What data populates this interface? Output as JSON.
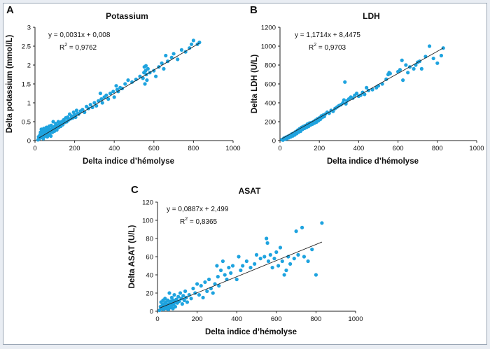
{
  "chart_data": [
    {
      "type": "scatter",
      "panel_label": "A",
      "title": "Potassium",
      "xlabel": "Delta indice d’hémolyse",
      "ylabel": "Delta potassium (mmol/L)",
      "xlim": [
        0,
        1000
      ],
      "ylim": [
        0,
        3
      ],
      "xticks": [
        "0",
        "200",
        "400",
        "600",
        "800",
        "1000"
      ],
      "yticks": [
        "0",
        "0.5",
        "1",
        "1.5",
        "2",
        "2.5",
        "3"
      ],
      "equation": "y = 0,0031x + 0,008",
      "r2_label": "R",
      "r2_exp": "2",
      "r2_value": " = 0,9762",
      "trendline": {
        "slope": 0.0031,
        "intercept": 0.008,
        "x_range": [
          20,
          830
        ]
      },
      "points": [
        [
          15,
          0.02
        ],
        [
          18,
          0.1
        ],
        [
          22,
          0.05
        ],
        [
          25,
          0.15
        ],
        [
          28,
          0.22
        ],
        [
          30,
          0.08
        ],
        [
          32,
          0.3
        ],
        [
          35,
          0.12
        ],
        [
          38,
          0.18
        ],
        [
          40,
          0.25
        ],
        [
          42,
          0.05
        ],
        [
          45,
          0.32
        ],
        [
          48,
          0.2
        ],
        [
          50,
          0.12
        ],
        [
          52,
          0.28
        ],
        [
          55,
          0.18
        ],
        [
          58,
          0.35
        ],
        [
          60,
          0.22
        ],
        [
          62,
          0.1
        ],
        [
          65,
          0.3
        ],
        [
          68,
          0.15
        ],
        [
          70,
          0.25
        ],
        [
          72,
          0.38
        ],
        [
          75,
          0.2
        ],
        [
          78,
          0.3
        ],
        [
          80,
          0.12
        ],
        [
          82,
          0.4
        ],
        [
          85,
          0.28
        ],
        [
          88,
          0.22
        ],
        [
          90,
          0.35
        ],
        [
          92,
          0.5
        ],
        [
          95,
          0.3
        ],
        [
          98,
          0.25
        ],
        [
          100,
          0.38
        ],
        [
          105,
          0.45
        ],
        [
          108,
          0.32
        ],
        [
          110,
          0.28
        ],
        [
          115,
          0.4
        ],
        [
          118,
          0.5
        ],
        [
          120,
          0.35
        ],
        [
          125,
          0.45
        ],
        [
          130,
          0.38
        ],
        [
          135,
          0.5
        ],
        [
          140,
          0.42
        ],
        [
          145,
          0.55
        ],
        [
          150,
          0.48
        ],
        [
          155,
          0.6
        ],
        [
          160,
          0.5
        ],
        [
          165,
          0.62
        ],
        [
          170,
          0.55
        ],
        [
          175,
          0.7
        ],
        [
          180,
          0.58
        ],
        [
          185,
          0.65
        ],
        [
          190,
          0.6
        ],
        [
          195,
          0.75
        ],
        [
          200,
          0.68
        ],
        [
          205,
          0.62
        ],
        [
          210,
          0.8
        ],
        [
          215,
          0.72
        ],
        [
          220,
          0.7
        ],
        [
          230,
          0.78
        ],
        [
          240,
          0.82
        ],
        [
          250,
          0.75
        ],
        [
          260,
          0.9
        ],
        [
          270,
          0.85
        ],
        [
          280,
          0.95
        ],
        [
          290,
          0.88
        ],
        [
          300,
          1.0
        ],
        [
          310,
          0.92
        ],
        [
          320,
          1.05
        ],
        [
          330,
          1.25
        ],
        [
          335,
          1.1
        ],
        [
          340,
          1.0
        ],
        [
          350,
          1.15
        ],
        [
          360,
          1.2
        ],
        [
          370,
          1.1
        ],
        [
          380,
          1.25
        ],
        [
          395,
          1.3
        ],
        [
          400,
          1.15
        ],
        [
          410,
          1.45
        ],
        [
          415,
          1.35
        ],
        [
          420,
          1.3
        ],
        [
          430,
          1.4
        ],
        [
          440,
          1.38
        ],
        [
          455,
          1.5
        ],
        [
          470,
          1.6
        ],
        [
          490,
          1.55
        ],
        [
          510,
          1.62
        ],
        [
          530,
          1.7
        ],
        [
          545,
          1.65
        ],
        [
          550,
          1.8
        ],
        [
          552,
          1.95
        ],
        [
          555,
          1.5
        ],
        [
          558,
          1.85
        ],
        [
          560,
          1.98
        ],
        [
          562,
          1.75
        ],
        [
          565,
          1.6
        ],
        [
          570,
          1.9
        ],
        [
          580,
          1.8
        ],
        [
          600,
          1.85
        ],
        [
          610,
          1.7
        ],
        [
          625,
          1.95
        ],
        [
          640,
          2.05
        ],
        [
          650,
          1.9
        ],
        [
          660,
          2.25
        ],
        [
          670,
          2.1
        ],
        [
          690,
          2.2
        ],
        [
          700,
          2.3
        ],
        [
          720,
          2.15
        ],
        [
          740,
          2.4
        ],
        [
          760,
          2.35
        ],
        [
          780,
          2.45
        ],
        [
          790,
          2.55
        ],
        [
          800,
          2.65
        ],
        [
          820,
          2.55
        ],
        [
          830,
          2.6
        ]
      ]
    },
    {
      "type": "scatter",
      "panel_label": "B",
      "title": "LDH",
      "xlabel": "Delta indice d’hémolyse",
      "ylabel": "Delta LDH (U/L)",
      "xlim": [
        0,
        1000
      ],
      "ylim": [
        0,
        1200
      ],
      "xticks": [
        "0",
        "200",
        "400",
        "600",
        "800",
        "1000"
      ],
      "yticks": [
        "0",
        "200",
        "400",
        "600",
        "800",
        "1000",
        "1200"
      ],
      "equation": "y = 1,1714x + 8,4475",
      "r2_label": "R",
      "r2_exp": "2",
      "r2_value": " = 0,9703",
      "trendline": {
        "slope": 1.1714,
        "intercept": 8.4475,
        "x_range": [
          10,
          830
        ]
      },
      "points": [
        [
          10,
          10
        ],
        [
          15,
          5
        ],
        [
          20,
          25
        ],
        [
          25,
          15
        ],
        [
          30,
          35
        ],
        [
          35,
          20
        ],
        [
          40,
          45
        ],
        [
          45,
          30
        ],
        [
          50,
          55
        ],
        [
          55,
          40
        ],
        [
          60,
          70
        ],
        [
          65,
          50
        ],
        [
          70,
          80
        ],
        [
          75,
          60
        ],
        [
          80,
          95
        ],
        [
          85,
          75
        ],
        [
          90,
          110
        ],
        [
          95,
          90
        ],
        [
          100,
          125
        ],
        [
          105,
          100
        ],
        [
          110,
          140
        ],
        [
          115,
          120
        ],
        [
          120,
          150
        ],
        [
          125,
          130
        ],
        [
          130,
          160
        ],
        [
          135,
          140
        ],
        [
          140,
          175
        ],
        [
          145,
          150
        ],
        [
          150,
          185
        ],
        [
          155,
          165
        ],
        [
          160,
          190
        ],
        [
          165,
          175
        ],
        [
          170,
          200
        ],
        [
          175,
          185
        ],
        [
          180,
          215
        ],
        [
          185,
          195
        ],
        [
          190,
          230
        ],
        [
          195,
          210
        ],
        [
          200,
          240
        ],
        [
          205,
          225
        ],
        [
          210,
          260
        ],
        [
          215,
          245
        ],
        [
          220,
          270
        ],
        [
          225,
          255
        ],
        [
          230,
          280
        ],
        [
          240,
          300
        ],
        [
          250,
          290
        ],
        [
          260,
          320
        ],
        [
          270,
          310
        ],
        [
          280,
          340
        ],
        [
          290,
          355
        ],
        [
          300,
          370
        ],
        [
          310,
          380
        ],
        [
          320,
          400
        ],
        [
          325,
          430
        ],
        [
          330,
          620
        ],
        [
          335,
          390
        ],
        [
          340,
          420
        ],
        [
          350,
          440
        ],
        [
          360,
          460
        ],
        [
          370,
          450
        ],
        [
          380,
          480
        ],
        [
          390,
          500
        ],
        [
          400,
          470
        ],
        [
          410,
          480
        ],
        [
          420,
          510
        ],
        [
          430,
          490
        ],
        [
          440,
          560
        ],
        [
          450,
          530
        ],
        [
          470,
          540
        ],
        [
          490,
          560
        ],
        [
          500,
          580
        ],
        [
          520,
          600
        ],
        [
          540,
          650
        ],
        [
          550,
          700
        ],
        [
          555,
          720
        ],
        [
          560,
          710
        ],
        [
          600,
          730
        ],
        [
          610,
          750
        ],
        [
          620,
          850
        ],
        [
          625,
          640
        ],
        [
          640,
          800
        ],
        [
          650,
          720
        ],
        [
          660,
          780
        ],
        [
          680,
          760
        ],
        [
          690,
          800
        ],
        [
          700,
          830
        ],
        [
          710,
          840
        ],
        [
          720,
          760
        ],
        [
          740,
          890
        ],
        [
          760,
          1000
        ],
        [
          780,
          870
        ],
        [
          800,
          820
        ],
        [
          820,
          900
        ],
        [
          830,
          980
        ]
      ]
    },
    {
      "type": "scatter",
      "panel_label": "C",
      "title": "ASAT",
      "xlabel": "Delta indice d’hémolyse",
      "ylabel": "Delta ASAT (U/L)",
      "xlim": [
        0,
        1000
      ],
      "ylim": [
        0,
        120
      ],
      "xticks": [
        "0",
        "200",
        "400",
        "600",
        "800",
        "1000"
      ],
      "yticks": [
        "0",
        "20",
        "40",
        "60",
        "80",
        "100",
        "120"
      ],
      "equation": "y = 0,0887x + 2,499",
      "r2_label": "R",
      "r2_exp": "2",
      "r2_value": " = 0,8365",
      "trendline": {
        "slope": 0.0887,
        "intercept": 2.499,
        "x_range": [
          10,
          830
        ]
      },
      "points": [
        [
          10,
          1
        ],
        [
          15,
          5
        ],
        [
          18,
          10
        ],
        [
          20,
          3
        ],
        [
          25,
          7
        ],
        [
          28,
          12
        ],
        [
          30,
          2
        ],
        [
          32,
          8
        ],
        [
          35,
          4
        ],
        [
          38,
          14
        ],
        [
          40,
          6
        ],
        [
          42,
          10
        ],
        [
          45,
          3
        ],
        [
          48,
          8
        ],
        [
          50,
          5
        ],
        [
          52,
          12
        ],
        [
          55,
          2
        ],
        [
          58,
          7
        ],
        [
          60,
          20
        ],
        [
          62,
          9
        ],
        [
          65,
          4
        ],
        [
          68,
          11
        ],
        [
          70,
          6
        ],
        [
          72,
          15
        ],
        [
          75,
          8
        ],
        [
          78,
          3
        ],
        [
          80,
          12
        ],
        [
          82,
          7
        ],
        [
          85,
          18
        ],
        [
          88,
          10
        ],
        [
          90,
          5
        ],
        [
          95,
          13
        ],
        [
          100,
          9
        ],
        [
          105,
          16
        ],
        [
          110,
          11
        ],
        [
          115,
          20
        ],
        [
          120,
          14
        ],
        [
          125,
          8
        ],
        [
          130,
          17
        ],
        [
          135,
          12
        ],
        [
          140,
          22
        ],
        [
          145,
          15
        ],
        [
          150,
          10
        ],
        [
          160,
          18
        ],
        [
          170,
          14
        ],
        [
          180,
          25
        ],
        [
          190,
          20
        ],
        [
          200,
          30
        ],
        [
          210,
          18
        ],
        [
          220,
          28
        ],
        [
          230,
          15
        ],
        [
          240,
          32
        ],
        [
          250,
          22
        ],
        [
          260,
          35
        ],
        [
          270,
          25
        ],
        [
          280,
          20
        ],
        [
          290,
          30
        ],
        [
          300,
          50
        ],
        [
          305,
          38
        ],
        [
          310,
          28
        ],
        [
          320,
          45
        ],
        [
          330,
          55
        ],
        [
          340,
          40
        ],
        [
          350,
          35
        ],
        [
          360,
          48
        ],
        [
          370,
          42
        ],
        [
          380,
          50
        ],
        [
          400,
          35
        ],
        [
          410,
          60
        ],
        [
          420,
          45
        ],
        [
          430,
          50
        ],
        [
          450,
          55
        ],
        [
          470,
          48
        ],
        [
          490,
          52
        ],
        [
          500,
          62
        ],
        [
          520,
          58
        ],
        [
          540,
          60
        ],
        [
          550,
          80
        ],
        [
          555,
          75
        ],
        [
          560,
          55
        ],
        [
          570,
          62
        ],
        [
          580,
          48
        ],
        [
          590,
          58
        ],
        [
          600,
          65
        ],
        [
          610,
          50
        ],
        [
          620,
          70
        ],
        [
          630,
          55
        ],
        [
          640,
          40
        ],
        [
          650,
          45
        ],
        [
          660,
          60
        ],
        [
          670,
          52
        ],
        [
          690,
          58
        ],
        [
          700,
          88
        ],
        [
          710,
          62
        ],
        [
          730,
          92
        ],
        [
          740,
          60
        ],
        [
          760,
          55
        ],
        [
          780,
          68
        ],
        [
          800,
          40
        ],
        [
          830,
          97
        ]
      ]
    }
  ]
}
